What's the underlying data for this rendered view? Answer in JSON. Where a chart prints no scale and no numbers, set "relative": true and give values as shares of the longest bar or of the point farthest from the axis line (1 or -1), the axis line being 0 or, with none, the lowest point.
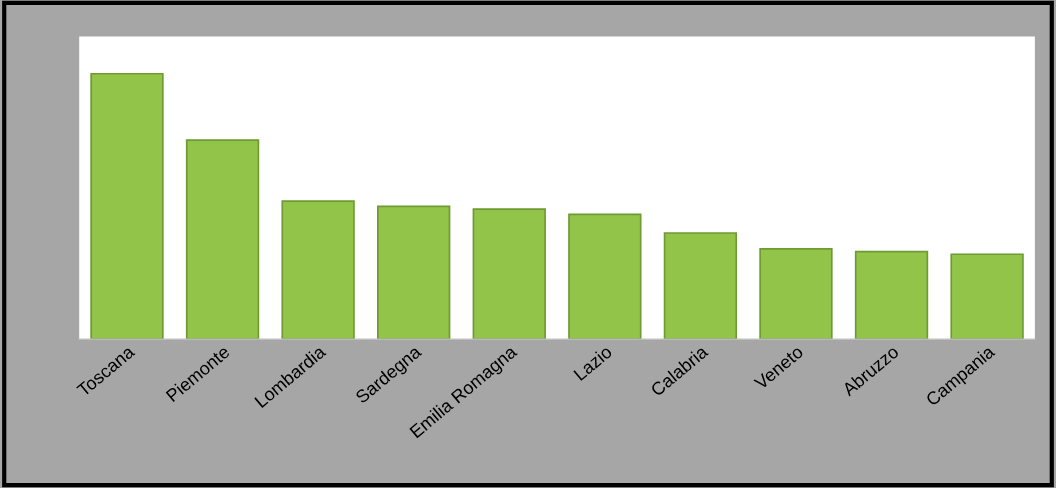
{
  "chart_data": {
    "type": "bar",
    "relative": true,
    "categories": [
      "Toscana",
      "Piemonte",
      "Lombardia",
      "Sardegna",
      "Emilia Romagna",
      "Lazio",
      "Calabria",
      "Veneto",
      "Abruzzo",
      "Campania"
    ],
    "values": [
      1,
      0.75,
      0.52,
      0.5,
      0.49,
      0.47,
      0.4,
      0.34,
      0.33,
      0.32
    ],
    "color": "#92c44a",
    "grid": false,
    "legend": false
  }
}
